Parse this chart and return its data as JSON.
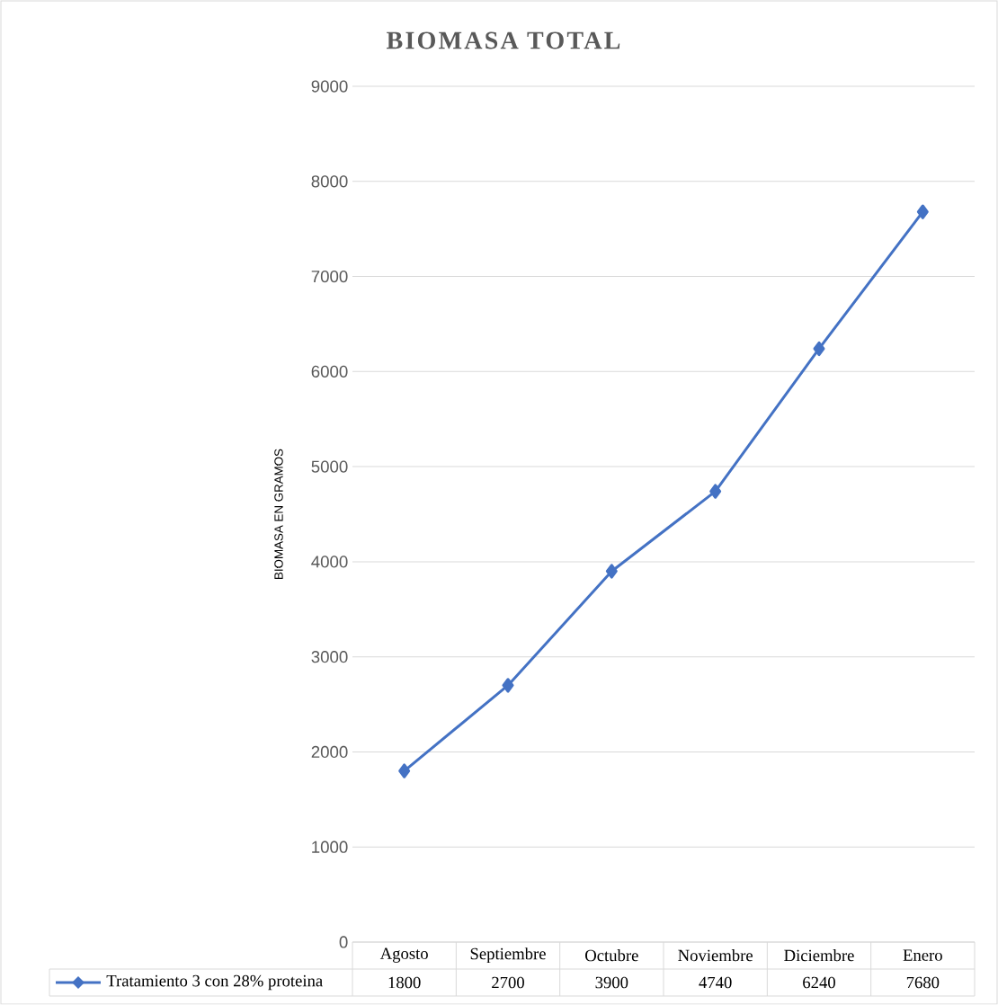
{
  "chart_data": {
    "type": "line",
    "title": "BIOMASA TOTAL",
    "ylabel": "BIOMASA EN GRAMOS",
    "categories": [
      "Agosto",
      "Septiembre",
      "Octubre",
      "Noviembre",
      "Diciembre",
      "Enero"
    ],
    "series": [
      {
        "name": "Tratamiento 3 con 28% proteina",
        "color": "#4472c4",
        "values": [
          1800,
          2700,
          3900,
          4740,
          6240,
          7680
        ]
      }
    ],
    "ylim": [
      0,
      9000
    ],
    "yticks": [
      0,
      1000,
      2000,
      3000,
      4000,
      5000,
      6000,
      7000,
      8000,
      9000
    ],
    "grid": "y",
    "legend": "bottom",
    "marker": "diamond",
    "data_labels": true
  }
}
